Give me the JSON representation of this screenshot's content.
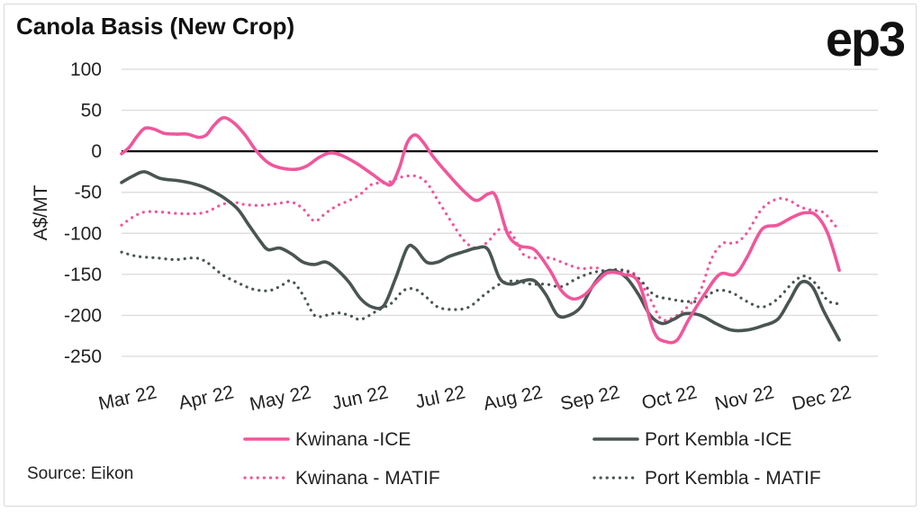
{
  "header": {
    "title": "Canola Basis (New Crop)",
    "logo": "ep3"
  },
  "footer": {
    "source": "Source: Eikon"
  },
  "chart_data": {
    "type": "line",
    "title": "Canola Basis (New Crop)",
    "ylabel": "A$/MT",
    "xlabel": "",
    "ylim": [
      -250,
      100
    ],
    "yticks": [
      100,
      50,
      0,
      -50,
      -100,
      -150,
      -200,
      -250
    ],
    "x_range": [
      0,
      9.8
    ],
    "x_ticks": [
      {
        "label": "Mar 22",
        "pos": 0
      },
      {
        "label": "Apr 22",
        "pos": 1
      },
      {
        "label": "May 22",
        "pos": 2
      },
      {
        "label": "Jun 22",
        "pos": 3
      },
      {
        "label": "Jul 22",
        "pos": 4
      },
      {
        "label": "Aug 22",
        "pos": 5
      },
      {
        "label": "Sep 22",
        "pos": 6
      },
      {
        "label": "Oct 22",
        "pos": 7
      },
      {
        "label": "Nov 22",
        "pos": 8
      },
      {
        "label": "Dec 22",
        "pos": 9
      }
    ],
    "grid": "horizontal",
    "legend_position": "bottom",
    "series": [
      {
        "name": "Kwinana -ICE",
        "color": "#f0569a",
        "style": "solid",
        "points": [
          [
            0,
            -3
          ],
          [
            0.1,
            5
          ],
          [
            0.2,
            18
          ],
          [
            0.3,
            28
          ],
          [
            0.42,
            27
          ],
          [
            0.55,
            22
          ],
          [
            0.7,
            21
          ],
          [
            0.85,
            21
          ],
          [
            1.0,
            17
          ],
          [
            1.1,
            20
          ],
          [
            1.2,
            32
          ],
          [
            1.32,
            41
          ],
          [
            1.45,
            35
          ],
          [
            1.6,
            20
          ],
          [
            1.75,
            0
          ],
          [
            1.9,
            -14
          ],
          [
            2.05,
            -20
          ],
          [
            2.25,
            -22
          ],
          [
            2.4,
            -18
          ],
          [
            2.55,
            -8
          ],
          [
            2.7,
            -2
          ],
          [
            2.85,
            -5
          ],
          [
            3.05,
            -15
          ],
          [
            3.25,
            -28
          ],
          [
            3.4,
            -38
          ],
          [
            3.5,
            -40
          ],
          [
            3.6,
            -20
          ],
          [
            3.7,
            10
          ],
          [
            3.8,
            20
          ],
          [
            3.9,
            12
          ],
          [
            4.05,
            -8
          ],
          [
            4.25,
            -30
          ],
          [
            4.45,
            -50
          ],
          [
            4.6,
            -60
          ],
          [
            4.75,
            -52
          ],
          [
            4.85,
            -55
          ],
          [
            5.0,
            -100
          ],
          [
            5.15,
            -115
          ],
          [
            5.35,
            -120
          ],
          [
            5.55,
            -145
          ],
          [
            5.7,
            -170
          ],
          [
            5.85,
            -180
          ],
          [
            6.0,
            -175
          ],
          [
            6.15,
            -160
          ],
          [
            6.3,
            -148
          ],
          [
            6.5,
            -150
          ],
          [
            6.7,
            -160
          ],
          [
            6.9,
            -220
          ],
          [
            7.05,
            -232
          ],
          [
            7.2,
            -230
          ],
          [
            7.35,
            -205
          ],
          [
            7.55,
            -175
          ],
          [
            7.75,
            -150
          ],
          [
            7.95,
            -150
          ],
          [
            8.1,
            -130
          ],
          [
            8.3,
            -95
          ],
          [
            8.5,
            -90
          ],
          [
            8.7,
            -80
          ],
          [
            8.85,
            -75
          ],
          [
            9.0,
            -78
          ],
          [
            9.15,
            -100
          ],
          [
            9.3,
            -145
          ]
        ]
      },
      {
        "name": "Port Kembla -ICE",
        "color": "#4a5553",
        "style": "solid",
        "points": [
          [
            0,
            -38
          ],
          [
            0.15,
            -30
          ],
          [
            0.3,
            -25
          ],
          [
            0.5,
            -33
          ],
          [
            0.75,
            -36
          ],
          [
            0.95,
            -40
          ],
          [
            1.1,
            -45
          ],
          [
            1.3,
            -55
          ],
          [
            1.5,
            -70
          ],
          [
            1.65,
            -90
          ],
          [
            1.8,
            -110
          ],
          [
            1.9,
            -120
          ],
          [
            2.05,
            -118
          ],
          [
            2.2,
            -125
          ],
          [
            2.35,
            -135
          ],
          [
            2.5,
            -138
          ],
          [
            2.65,
            -135
          ],
          [
            2.8,
            -145
          ],
          [
            2.95,
            -160
          ],
          [
            3.1,
            -180
          ],
          [
            3.25,
            -190
          ],
          [
            3.4,
            -188
          ],
          [
            3.55,
            -155
          ],
          [
            3.7,
            -118
          ],
          [
            3.8,
            -118
          ],
          [
            3.95,
            -135
          ],
          [
            4.1,
            -135
          ],
          [
            4.25,
            -128
          ],
          [
            4.45,
            -122
          ],
          [
            4.6,
            -118
          ],
          [
            4.75,
            -120
          ],
          [
            4.9,
            -155
          ],
          [
            5.05,
            -162
          ],
          [
            5.2,
            -158
          ],
          [
            5.35,
            -158
          ],
          [
            5.5,
            -175
          ],
          [
            5.65,
            -200
          ],
          [
            5.8,
            -200
          ],
          [
            5.95,
            -190
          ],
          [
            6.1,
            -165
          ],
          [
            6.25,
            -148
          ],
          [
            6.4,
            -146
          ],
          [
            6.55,
            -155
          ],
          [
            6.7,
            -175
          ],
          [
            6.85,
            -200
          ],
          [
            7.0,
            -210
          ],
          [
            7.15,
            -205
          ],
          [
            7.3,
            -198
          ],
          [
            7.5,
            -200
          ],
          [
            7.7,
            -210
          ],
          [
            7.9,
            -218
          ],
          [
            8.1,
            -218
          ],
          [
            8.3,
            -213
          ],
          [
            8.5,
            -205
          ],
          [
            8.65,
            -183
          ],
          [
            8.8,
            -160
          ],
          [
            8.95,
            -165
          ],
          [
            9.1,
            -195
          ],
          [
            9.3,
            -230
          ]
        ]
      },
      {
        "name": "Kwinana - MATIF",
        "color": "#f0569a",
        "style": "dotted",
        "points": [
          [
            0,
            -90
          ],
          [
            0.15,
            -80
          ],
          [
            0.3,
            -74
          ],
          [
            0.5,
            -74
          ],
          [
            0.75,
            -76
          ],
          [
            0.95,
            -76
          ],
          [
            1.1,
            -74
          ],
          [
            1.3,
            -65
          ],
          [
            1.45,
            -62
          ],
          [
            1.6,
            -65
          ],
          [
            1.8,
            -66
          ],
          [
            2.0,
            -64
          ],
          [
            2.2,
            -62
          ],
          [
            2.35,
            -70
          ],
          [
            2.5,
            -85
          ],
          [
            2.65,
            -75
          ],
          [
            2.8,
            -66
          ],
          [
            2.95,
            -60
          ],
          [
            3.1,
            -52
          ],
          [
            3.25,
            -40
          ],
          [
            3.45,
            -38
          ],
          [
            3.6,
            -32
          ],
          [
            3.8,
            -30
          ],
          [
            3.95,
            -38
          ],
          [
            4.1,
            -60
          ],
          [
            4.3,
            -90
          ],
          [
            4.45,
            -110
          ],
          [
            4.6,
            -118
          ],
          [
            4.75,
            -110
          ],
          [
            4.9,
            -95
          ],
          [
            5.05,
            -100
          ],
          [
            5.2,
            -125
          ],
          [
            5.35,
            -130
          ],
          [
            5.55,
            -130
          ],
          [
            5.75,
            -137
          ],
          [
            5.95,
            -143
          ],
          [
            6.15,
            -142
          ],
          [
            6.3,
            -148
          ],
          [
            6.5,
            -146
          ],
          [
            6.65,
            -150
          ],
          [
            6.85,
            -180
          ],
          [
            7.0,
            -205
          ],
          [
            7.2,
            -200
          ],
          [
            7.35,
            -188
          ],
          [
            7.5,
            -170
          ],
          [
            7.65,
            -130
          ],
          [
            7.8,
            -112
          ],
          [
            7.95,
            -112
          ],
          [
            8.1,
            -100
          ],
          [
            8.3,
            -70
          ],
          [
            8.5,
            -58
          ],
          [
            8.65,
            -60
          ],
          [
            8.8,
            -68
          ],
          [
            8.95,
            -72
          ],
          [
            9.1,
            -75
          ],
          [
            9.3,
            -97
          ]
        ]
      },
      {
        "name": "Port Kembla - MATIF",
        "color": "#4a5553",
        "style": "dotted",
        "points": [
          [
            0,
            -123
          ],
          [
            0.2,
            -128
          ],
          [
            0.45,
            -130
          ],
          [
            0.7,
            -132
          ],
          [
            0.95,
            -130
          ],
          [
            1.1,
            -135
          ],
          [
            1.3,
            -150
          ],
          [
            1.5,
            -160
          ],
          [
            1.7,
            -168
          ],
          [
            1.9,
            -170
          ],
          [
            2.05,
            -165
          ],
          [
            2.2,
            -158
          ],
          [
            2.35,
            -175
          ],
          [
            2.5,
            -200
          ],
          [
            2.65,
            -200
          ],
          [
            2.8,
            -197
          ],
          [
            2.95,
            -200
          ],
          [
            3.1,
            -205
          ],
          [
            3.3,
            -195
          ],
          [
            3.5,
            -185
          ],
          [
            3.65,
            -170
          ],
          [
            3.8,
            -168
          ],
          [
            3.95,
            -178
          ],
          [
            4.1,
            -190
          ],
          [
            4.3,
            -193
          ],
          [
            4.5,
            -190
          ],
          [
            4.7,
            -175
          ],
          [
            4.9,
            -162
          ],
          [
            5.1,
            -158
          ],
          [
            5.3,
            -162
          ],
          [
            5.5,
            -162
          ],
          [
            5.7,
            -165
          ],
          [
            5.9,
            -155
          ],
          [
            6.1,
            -148
          ],
          [
            6.3,
            -145
          ],
          [
            6.5,
            -145
          ],
          [
            6.7,
            -155
          ],
          [
            6.9,
            -175
          ],
          [
            7.1,
            -180
          ],
          [
            7.3,
            -183
          ],
          [
            7.5,
            -182
          ],
          [
            7.7,
            -170
          ],
          [
            7.9,
            -172
          ],
          [
            8.1,
            -183
          ],
          [
            8.3,
            -190
          ],
          [
            8.5,
            -180
          ],
          [
            8.7,
            -160
          ],
          [
            8.85,
            -152
          ],
          [
            9.0,
            -162
          ],
          [
            9.15,
            -182
          ],
          [
            9.3,
            -186
          ]
        ]
      }
    ]
  }
}
